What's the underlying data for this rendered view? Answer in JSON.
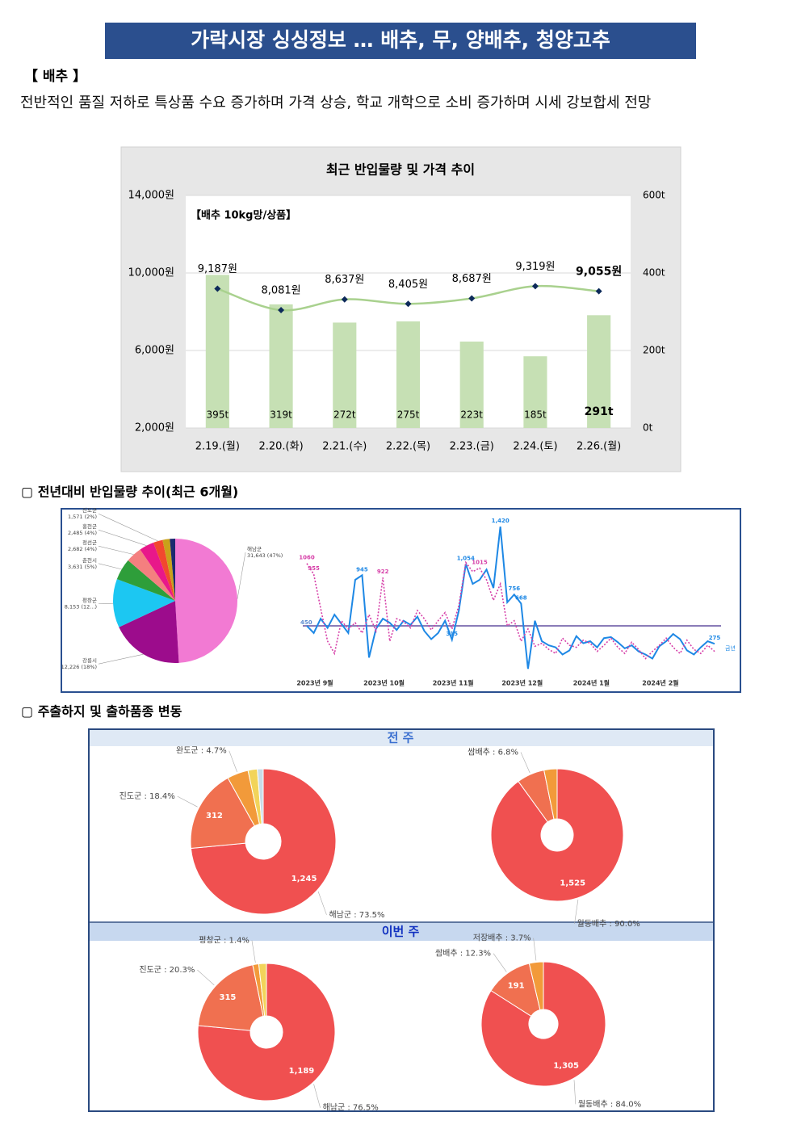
{
  "header": {
    "title": "가락시장 싱싱정보 … 배추, 무, 양배추, 청양고추"
  },
  "section": {
    "label": "【 배추 】",
    "text": "전반적인 품질 저하로 특상품 수요 증가하며 가격 상승, 학교 개학으로 소비 증가하며 시세 강보합세 전망"
  },
  "headings": [
    "▢ 전년대비 반입물량 추이(최근 6개월)",
    "▢ 주출하지 및 출하품종 변동"
  ],
  "panels": [
    "전 주",
    "이번 주"
  ],
  "chart_data": [
    {
      "type": "combo",
      "title": "최근 반입물량 및 가격 추이",
      "annotation": "【배추 10kg망/상품】",
      "categories": [
        "2.19.(월)",
        "2.20.(화)",
        "2.21.(수)",
        "2.22.(목)",
        "2.23.(금)",
        "2.24.(토)",
        "2.26.(월)"
      ],
      "series": [
        {
          "type": "bar",
          "axis": "y2",
          "color": "#c6e0b4",
          "values": [
            395,
            319,
            272,
            275,
            223,
            185,
            291
          ],
          "value_labels": [
            "395t",
            "319t",
            "272t",
            "275t",
            "223t",
            "185t",
            "291t"
          ]
        },
        {
          "type": "line",
          "color": "#a9d18e",
          "marker_color": "#0d2a5a",
          "values": [
            9187,
            8081,
            8637,
            8405,
            8687,
            9319,
            9055
          ],
          "value_labels": [
            "9,187원",
            "8,081원",
            "8,637원",
            "8,405원",
            "8,687원",
            "9,319원",
            "9,055원"
          ]
        }
      ],
      "ylim": [
        2000,
        14000
      ],
      "yticks": [
        {
          "value": 2000,
          "label": "2,000원"
        },
        {
          "value": 6000,
          "label": "6,000원"
        },
        {
          "value": 10000,
          "label": "10,000원"
        },
        {
          "value": 14000,
          "label": "14,000원"
        }
      ],
      "y2lim": [
        0,
        600
      ],
      "y2ticks": [
        {
          "value": 0,
          "label": "0t"
        },
        {
          "value": 200,
          "label": "200t"
        },
        {
          "value": 400,
          "label": "400t"
        },
        {
          "value": 600,
          "label": "600t"
        }
      ],
      "grid": true
    },
    {
      "type": "pie",
      "categories": [
        "해남군",
        "강릉시",
        "평창군",
        "춘천시",
        "정선군",
        "홍천군",
        "진도군",
        null,
        null
      ],
      "values": [
        31643,
        12226,
        8153,
        3631,
        2682,
        2485,
        1571,
        1200,
        900
      ],
      "value_labels": [
        "31,643 (47%)",
        "12,226 (18%)",
        "8,153 (12...)",
        "3,631 (5%)",
        "2,682 (4%)",
        "2,485 (4%)",
        "1,571 (2%)",
        null,
        null
      ],
      "colors": [
        "#f27ad3",
        "#9c0c8c",
        "#1cc7f2",
        "#2e9e3a",
        "#f47f7f",
        "#e8188a",
        "#f2482e",
        "#c9a11a",
        "#1c2a6e"
      ]
    },
    {
      "type": "line",
      "categories": [
        "2023년 9월",
        null,
        null,
        null,
        null,
        null,
        null,
        null,
        null,
        null,
        "2023년 10월",
        null,
        null,
        null,
        null,
        null,
        null,
        null,
        null,
        null,
        "2023년 11월",
        null,
        null,
        null,
        null,
        null,
        null,
        null,
        null,
        null,
        "2023년 12월",
        null,
        null,
        null,
        null,
        null,
        null,
        null,
        null,
        null,
        "2024년 1월",
        null,
        null,
        null,
        null,
        null,
        null,
        null,
        null,
        null,
        "2024년 2월",
        null,
        null,
        null,
        null,
        null,
        null,
        null,
        null,
        null
      ],
      "series": [
        {
          "name": "금년",
          "color": "#1e88e5",
          "dash": false,
          "values": [
            450,
            380,
            520,
            430,
            560,
            470,
            380,
            900,
            945,
            140,
            420,
            520,
            480,
            410,
            500,
            460,
            540,
            400,
            320,
            380,
            500,
            315,
            600,
            1054,
            860,
            900,
            1000,
            820,
            1420,
            680,
            756,
            668,
            30,
            500,
            300,
            260,
            240,
            170,
            210,
            350,
            280,
            300,
            240,
            330,
            340,
            290,
            230,
            260,
            200,
            170,
            130,
            250,
            300,
            370,
            320,
            210,
            170,
            240,
            300,
            275
          ],
          "value_labels": [
            null,
            null,
            null,
            null,
            null,
            null,
            null,
            null,
            "945",
            null,
            null,
            null,
            null,
            null,
            null,
            null,
            null,
            null,
            null,
            null,
            null,
            "315",
            null,
            "1,054",
            null,
            null,
            null,
            null,
            "1,420",
            null,
            "756",
            "668",
            null,
            null,
            null,
            null,
            null,
            null,
            null,
            null,
            null,
            null,
            null,
            null,
            null,
            null,
            null,
            null,
            null,
            null,
            null,
            null,
            null,
            null,
            null,
            null,
            null,
            null,
            null,
            "275"
          ]
        },
        {
          "color": "#d63fa8",
          "dash": true,
          "values": [
            1060,
            955,
            620,
            300,
            180,
            500,
            420,
            480,
            380,
            560,
            400,
            922,
            300,
            520,
            490,
            430,
            600,
            520,
            410,
            500,
            580,
            420,
            650,
            1070,
            980,
            1015,
            900,
            700,
            860,
            450,
            500,
            300,
            420,
            250,
            280,
            220,
            180,
            330,
            260,
            240,
            310,
            280,
            200,
            260,
            330,
            240,
            180,
            290,
            220,
            130,
            200,
            260,
            330,
            240,
            180,
            310,
            220,
            180,
            260,
            200
          ],
          "value_labels": [
            "1060",
            "955",
            null,
            null,
            null,
            null,
            null,
            null,
            null,
            null,
            null,
            "922",
            null,
            null,
            null,
            null,
            null,
            null,
            null,
            null,
            null,
            null,
            null,
            null,
            null,
            "1015",
            null,
            null,
            null,
            null,
            null,
            null,
            null,
            null,
            null,
            null,
            null,
            null,
            null,
            null,
            null,
            null,
            null,
            null,
            null,
            null,
            null,
            null,
            null,
            null,
            null,
            null,
            null,
            null,
            null,
            null,
            null,
            null,
            null,
            null
          ]
        }
      ],
      "reference": {
        "value": 450,
        "color": "#8a7cb8"
      },
      "ylim": [
        0,
        1500
      ]
    },
    {
      "type": "donut",
      "categories": [
        "해남군 : 73.5%",
        "진도군 : 18.4%",
        "완도군 : 4.7%",
        null,
        null
      ],
      "values": [
        1245,
        312,
        80,
        35,
        22
      ],
      "value_labels": [
        "1,245",
        "312",
        null,
        null,
        null
      ],
      "colors": [
        "#f05050",
        "#f07050",
        "#f29a3a",
        "#f2d45a",
        "#c8dce8"
      ]
    },
    {
      "type": "donut",
      "categories": [
        "월동배추 : 90.0%",
        "쌈배추 : 6.8%",
        null
      ],
      "values": [
        1525,
        115,
        54
      ],
      "value_labels": [
        "1,525",
        null,
        null
      ],
      "colors": [
        "#f05050",
        "#f07050",
        "#f29a3a"
      ]
    },
    {
      "type": "donut",
      "categories": [
        "해남군 : 76.5%",
        "진도군 : 20.3%",
        "평창군 : 1.4%",
        null
      ],
      "values": [
        1189,
        315,
        22,
        28
      ],
      "value_labels": [
        "1,189",
        "315",
        null,
        null
      ],
      "colors": [
        "#f05050",
        "#f07050",
        "#f29a3a",
        "#f2d45a"
      ]
    },
    {
      "type": "donut",
      "categories": [
        "월동배추 : 84.0%",
        "쌈배추 : 12.3%",
        "저장배추 : 3.7%"
      ],
      "values": [
        1305,
        191,
        57
      ],
      "value_labels": [
        "1,305",
        "191",
        null
      ],
      "colors": [
        "#f05050",
        "#f07050",
        "#f29a3a"
      ]
    }
  ]
}
